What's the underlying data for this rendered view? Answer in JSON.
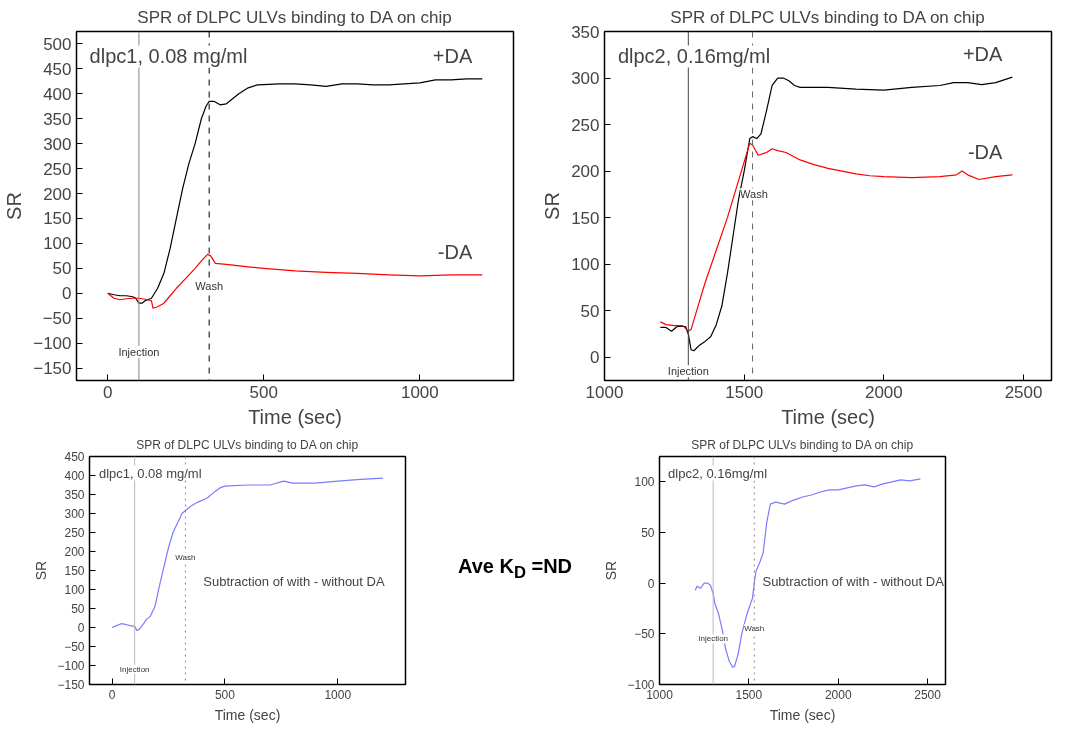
{
  "chart_data": [
    {
      "type": "line",
      "title": "SPR of DLPC ULVs binding to DA on chip",
      "xlabel": "Time (sec)",
      "ylabel": "SR",
      "xlim": [
        -100,
        1300
      ],
      "xticks": [
        0,
        500,
        1000
      ],
      "ylim": [
        -175,
        525
      ],
      "yticks": [
        -150,
        -100,
        -50,
        0,
        50,
        100,
        150,
        200,
        250,
        300,
        350,
        400,
        450,
        500
      ],
      "grid": false,
      "annotations": [
        "dlpc1, 0.08 mg/ml",
        {
          "text": "Injection",
          "x": 100,
          "y": -118
        },
        {
          "text": "Wash",
          "x": 325,
          "y": 15
        }
      ],
      "ref_lines": [
        {
          "axis": "x",
          "value": 100,
          "color": "#888888",
          "line_style": "solid"
        },
        {
          "axis": "x",
          "value": 325,
          "color": "#000000",
          "line_style": "dashed"
        }
      ],
      "series": [
        {
          "name": "+DA",
          "color": "#000000",
          "x": [
            0,
            20,
            40,
            60,
            80,
            90,
            100,
            110,
            120,
            140,
            160,
            180,
            200,
            220,
            240,
            260,
            280,
            300,
            315,
            325,
            340,
            360,
            380,
            400,
            420,
            450,
            480,
            550,
            600,
            650,
            700,
            750,
            800,
            850,
            900,
            950,
            1000,
            1050,
            1100,
            1150,
            1200
          ],
          "values": [
            0,
            -3,
            -5,
            -5,
            -7,
            -10,
            -20,
            -20,
            -15,
            -10,
            10,
            40,
            90,
            150,
            210,
            260,
            300,
            350,
            375,
            385,
            385,
            378,
            380,
            390,
            400,
            412,
            418,
            420,
            420,
            418,
            415,
            420,
            420,
            418,
            418,
            420,
            422,
            428,
            428,
            430,
            430
          ]
        },
        {
          "name": "-DA",
          "color": "#ff0000",
          "x": [
            0,
            20,
            40,
            60,
            80,
            100,
            120,
            140,
            145,
            160,
            180,
            200,
            220,
            250,
            280,
            300,
            320,
            330,
            345,
            380,
            450,
            500,
            600,
            700,
            800,
            900,
            1000,
            1100,
            1200
          ],
          "values": [
            0,
            -10,
            -13,
            -11,
            -10,
            -10,
            -12,
            -15,
            -30,
            -27,
            -20,
            -5,
            10,
            30,
            50,
            65,
            78,
            75,
            60,
            58,
            53,
            50,
            45,
            42,
            40,
            37,
            35,
            37,
            37
          ]
        }
      ]
    },
    {
      "type": "line",
      "title": "SPR of DLPC ULVs binding to DA on chip",
      "xlabel": "Time (sec)",
      "ylabel": "SR",
      "xlim": [
        1000,
        2600
      ],
      "xticks": [
        1000,
        1500,
        2000,
        2500
      ],
      "ylim": [
        -25,
        350
      ],
      "yticks": [
        0,
        50,
        100,
        150,
        200,
        250,
        300,
        350
      ],
      "grid": false,
      "annotations": [
        "dlpc2, 0.16mg/ml",
        {
          "text": "Injection",
          "x": 1300,
          "y": -15
        },
        {
          "text": "Wash",
          "x": 1535,
          "y": 175
        }
      ],
      "ref_lines": [
        {
          "axis": "x",
          "value": 1300,
          "color": "#444444",
          "line_style": "solid"
        },
        {
          "axis": "x",
          "value": 1530,
          "color": "#666666",
          "line_style": "dashed"
        }
      ],
      "series": [
        {
          "name": "+DA",
          "color": "#000000",
          "x": [
            1200,
            1220,
            1240,
            1260,
            1290,
            1300,
            1310,
            1320,
            1340,
            1360,
            1380,
            1400,
            1420,
            1440,
            1460,
            1480,
            1500,
            1520,
            1530,
            1545,
            1560,
            1580,
            1600,
            1620,
            1640,
            1660,
            1680,
            1700,
            1800,
            1900,
            2000,
            2100,
            2200,
            2250,
            2300,
            2350,
            2400,
            2460
          ],
          "values": [
            32,
            32,
            28,
            33,
            33,
            25,
            8,
            7,
            13,
            17,
            22,
            35,
            55,
            90,
            130,
            170,
            200,
            235,
            237,
            235,
            240,
            265,
            292,
            300,
            300,
            297,
            292,
            290,
            290,
            288,
            287,
            290,
            292,
            295,
            295,
            293,
            295,
            301
          ]
        },
        {
          "name": "-DA",
          "color": "#ff0000",
          "x": [
            1200,
            1220,
            1250,
            1280,
            1300,
            1310,
            1330,
            1360,
            1400,
            1440,
            1480,
            1520,
            1530,
            1550,
            1580,
            1600,
            1620,
            1650,
            1700,
            1750,
            1800,
            1900,
            1950,
            2000,
            2100,
            2200,
            2260,
            2280,
            2300,
            2340,
            2400,
            2460
          ],
          "values": [
            38,
            35,
            34,
            34,
            28,
            30,
            50,
            80,
            115,
            150,
            190,
            230,
            228,
            217,
            220,
            224,
            222,
            220,
            212,
            207,
            203,
            197,
            195,
            194,
            193,
            194,
            196,
            200,
            196,
            191,
            194,
            196
          ]
        }
      ]
    },
    {
      "type": "line",
      "title": "SPR of DLPC ULVs binding to DA on chip",
      "xlabel": "Time (sec)",
      "ylabel": "SR",
      "xlim": [
        -100,
        1300
      ],
      "xticks": [
        0,
        500,
        1000
      ],
      "ylim": [
        -150,
        450
      ],
      "yticks": [
        -150,
        -100,
        -50,
        0,
        50,
        100,
        150,
        200,
        250,
        300,
        350,
        400,
        450
      ],
      "grid": false,
      "annotations": [
        "dlpc1, 0.08 mg/ml",
        "Subtraction of with - without DA",
        {
          "text": "Injection",
          "x": 100,
          "y": -110
        },
        {
          "text": "Wash",
          "x": 325,
          "y": 185
        }
      ],
      "ref_lines": [
        {
          "axis": "x",
          "value": 100,
          "color": "#bbbbbb",
          "line_style": "solid"
        },
        {
          "axis": "x",
          "value": 325,
          "color": "#888888",
          "line_style": "dotted"
        }
      ],
      "series": [
        {
          "color": "#7b7bff",
          "x": [
            0,
            20,
            40,
            60,
            80,
            100,
            110,
            120,
            140,
            150,
            170,
            190,
            210,
            230,
            250,
            270,
            290,
            310,
            325,
            350,
            380,
            420,
            450,
            480,
            500,
            600,
            700,
            760,
            800,
            900,
            1000,
            1100,
            1200
          ],
          "values": [
            0,
            5,
            10,
            8,
            5,
            3,
            -8,
            -5,
            10,
            20,
            30,
            55,
            110,
            160,
            210,
            250,
            275,
            300,
            308,
            320,
            330,
            340,
            355,
            368,
            372,
            375,
            375,
            385,
            380,
            380,
            385,
            390,
            393
          ]
        }
      ]
    },
    {
      "type": "other",
      "annotations": [
        "Ave K$_{D}$ =ND"
      ]
    },
    {
      "type": "line",
      "title": "SPR of DLPC ULVs binding to DA on chip",
      "xlabel": "Time (sec)",
      "ylabel": "SR",
      "xlim": [
        1000,
        2600
      ],
      "xticks": [
        1000,
        1500,
        2000,
        2500
      ],
      "ylim": [
        -100,
        125
      ],
      "yticks": [
        -100,
        -50,
        0,
        50,
        100
      ],
      "grid": false,
      "annotations": [
        "dlpc2, 0.16mg/ml",
        "Subtraction of with - without DA",
        {
          "text": "Injection",
          "x": 1300,
          "y": -55
        },
        {
          "text": "Wash",
          "x": 1530,
          "y": -45
        }
      ],
      "ref_lines": [
        {
          "axis": "x",
          "value": 1300,
          "color": "#bbbbbb",
          "line_style": "solid"
        },
        {
          "axis": "x",
          "value": 1530,
          "color": "#888888",
          "line_style": "dotted"
        }
      ],
      "series": [
        {
          "color": "#7b7bff",
          "x": [
            1200,
            1210,
            1230,
            1250,
            1270,
            1285,
            1300,
            1310,
            1330,
            1350,
            1370,
            1390,
            1410,
            1420,
            1440,
            1460,
            1490,
            1520,
            1530,
            1540,
            1560,
            1580,
            1600,
            1620,
            1650,
            1700,
            1750,
            1800,
            1850,
            1900,
            1950,
            2000,
            2050,
            2100,
            2150,
            2200,
            2250,
            2300,
            2350,
            2400,
            2460
          ],
          "values": [
            -7,
            -3,
            -5,
            0,
            0,
            -2,
            -10,
            -20,
            -30,
            -45,
            -65,
            -77,
            -83,
            -82,
            -70,
            -50,
            -30,
            -15,
            0,
            12,
            20,
            30,
            60,
            78,
            80,
            78,
            82,
            85,
            87,
            90,
            92,
            92,
            94,
            96,
            97,
            95,
            98,
            100,
            102,
            101,
            103
          ]
        }
      ]
    }
  ]
}
